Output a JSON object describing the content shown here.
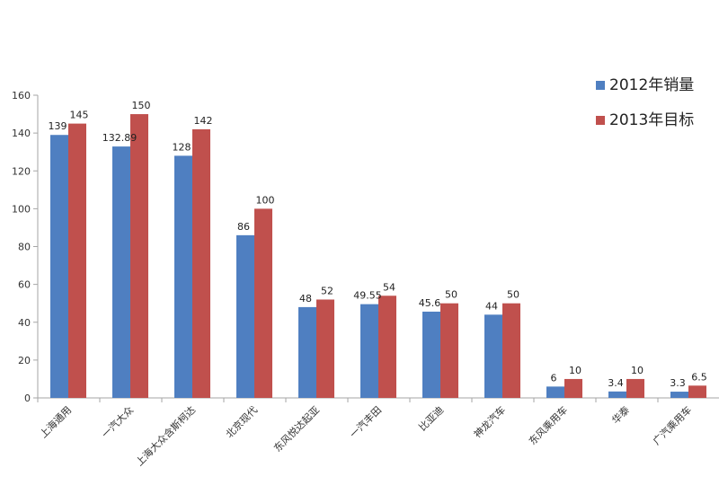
{
  "chart_data": {
    "type": "bar",
    "title": "",
    "xlabel": "",
    "ylabel": "",
    "ylim": [
      0,
      160
    ],
    "yticks": [
      0,
      20,
      40,
      60,
      80,
      100,
      120,
      140,
      160
    ],
    "grid": false,
    "legend_position": "top-right",
    "categories": [
      "上海通用",
      "一汽大众",
      "上海大众含斯柯达",
      "北京现代",
      "东风悦达起亚",
      "一汽丰田",
      "比亚迪",
      "神龙汽车",
      "东风乘用车",
      "华泰",
      "广汽乘用车"
    ],
    "series": [
      {
        "name": "2012年销量",
        "color": "#4F7FC1",
        "values": [
          139,
          132.89,
          128,
          86,
          48,
          49.55,
          45.6,
          44,
          6,
          3.4,
          3.3
        ],
        "labels": [
          "139",
          "132.89",
          "128",
          "86",
          "48",
          "49.55",
          "45.6",
          "44",
          "6",
          "3.4",
          "3.3"
        ]
      },
      {
        "name": "2013年目标",
        "color": "#C0504D",
        "values": [
          145,
          150,
          142,
          100,
          52,
          54,
          50,
          50,
          10,
          10,
          6.5
        ],
        "labels": [
          "145",
          "150",
          "142",
          "100",
          "52",
          "54",
          "50",
          "50",
          "10",
          "10",
          "6.5"
        ]
      }
    ]
  }
}
